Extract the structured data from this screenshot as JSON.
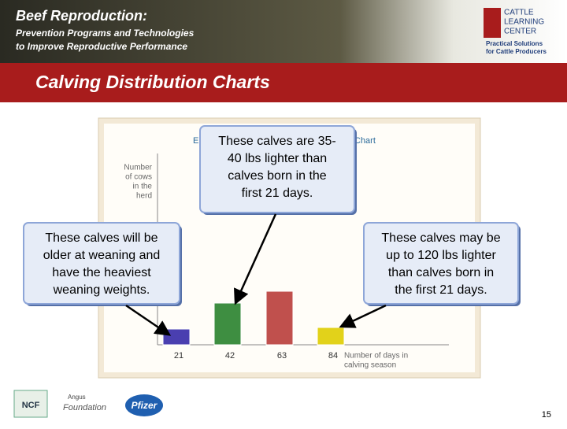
{
  "header": {
    "title": "Beef Reproduction:",
    "subtitle_lines": [
      "Prevention Programs and Technologies",
      "to Improve Reproductive Performance"
    ],
    "logo_lines": [
      "CATTLE",
      "LEARNING",
      "CENTER"
    ],
    "logo_tagline": [
      "Practical Solutions",
      "for Cattle Producers"
    ]
  },
  "slide_title": "Calving Distribution Charts",
  "chart_data": {
    "type": "bar",
    "title_fragments": [
      "E",
      "Chart"
    ],
    "y_label_lines": [
      "Number",
      "of cows",
      "in the",
      "herd"
    ],
    "x_label_lines": [
      "Number of days in",
      "calving season"
    ],
    "categories": [
      "21",
      "42",
      "63",
      "84"
    ],
    "values": [
      20,
      53,
      68,
      22
    ],
    "colors": [
      "#4a3fb0",
      "#3e8e41",
      "#c0504d",
      "#e2d21a"
    ]
  },
  "callouts": [
    {
      "lines": [
        "These calves are 35-",
        "40 lbs lighter than",
        "calves born in the",
        "first 21 days."
      ]
    },
    {
      "lines": [
        "These calves will be",
        "older at weaning and",
        "have the heaviest",
        "weaning weights."
      ]
    },
    {
      "lines": [
        "These calves may be",
        "up to 120 lbs lighter",
        "than calves born in",
        "the first 21 days."
      ]
    }
  ],
  "footer": {
    "logos": [
      "NCF",
      "Angus",
      "Foundation",
      "Pfizer"
    ],
    "page_number": "15"
  }
}
